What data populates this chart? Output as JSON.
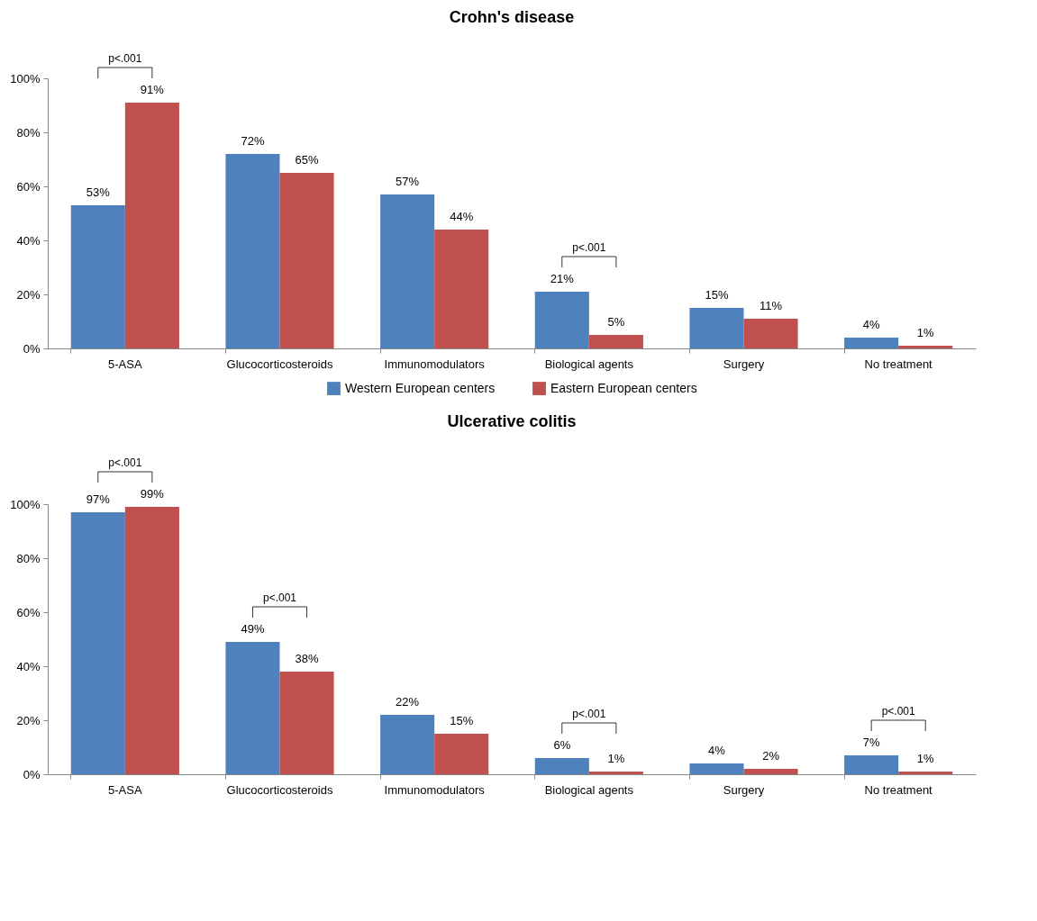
{
  "chart_data": [
    {
      "type": "bar",
      "title": "Crohn's disease",
      "categories": [
        "5-ASA",
        "Glucocorticosteroids",
        "Immunomodulators",
        "Biological agents",
        "Surgery",
        "No treatment"
      ],
      "series": [
        {
          "name": "Western European centers",
          "color": "#4f81bd",
          "values": [
            53,
            72,
            57,
            21,
            15,
            4
          ],
          "value_labels": [
            "53%",
            "72%",
            "57%",
            "21%",
            "15%",
            "4%"
          ]
        },
        {
          "name": "Eastern European centers",
          "color": "#c0504d",
          "values": [
            91,
            65,
            44,
            5,
            11,
            1
          ],
          "value_labels": [
            "91%",
            "65%",
            "44%",
            "5%",
            "11%",
            "1%"
          ]
        }
      ],
      "ylim": [
        0,
        100
      ],
      "yticks": [
        {
          "value": 0,
          "label": "0%"
        },
        {
          "value": 20,
          "label": "20%"
        },
        {
          "value": 40,
          "label": "40%"
        },
        {
          "value": 60,
          "label": "60%"
        },
        {
          "value": 80,
          "label": "80%"
        },
        {
          "value": 100,
          "label": "100%"
        }
      ],
      "grid": false,
      "legend": "bottom",
      "annotations": [
        "p<.001",
        "p<.001"
      ]
    },
    {
      "type": "bar",
      "title": "Ulcerative colitis",
      "categories": [
        "5-ASA",
        "Glucocorticosteroids",
        "Immunomodulators",
        "Biological agents",
        "Surgery",
        "No treatment"
      ],
      "series": [
        {
          "name": "Western European centers",
          "color": "#4f81bd",
          "values": [
            97,
            49,
            22,
            6,
            4,
            7
          ],
          "value_labels": [
            "97%",
            "49%",
            "22%",
            "6%",
            "4%",
            "7%"
          ]
        },
        {
          "name": "Eastern European centers",
          "color": "#c0504d",
          "values": [
            99,
            38,
            15,
            1,
            2,
            1
          ],
          "value_labels": [
            "99%",
            "38%",
            "15%",
            "1%",
            "2%",
            "1%"
          ]
        }
      ],
      "ylim": [
        0,
        100
      ],
      "yticks": [
        {
          "value": 0,
          "label": "0%"
        },
        {
          "value": 20,
          "label": "20%"
        },
        {
          "value": 40,
          "label": "40%"
        },
        {
          "value": 60,
          "label": "60%"
        },
        {
          "value": 80,
          "label": "80%"
        },
        {
          "value": 100,
          "label": "100%"
        }
      ],
      "grid": false,
      "annotations": [
        "p<.001",
        "p<.001",
        "p<.001",
        "p<.001"
      ]
    }
  ]
}
